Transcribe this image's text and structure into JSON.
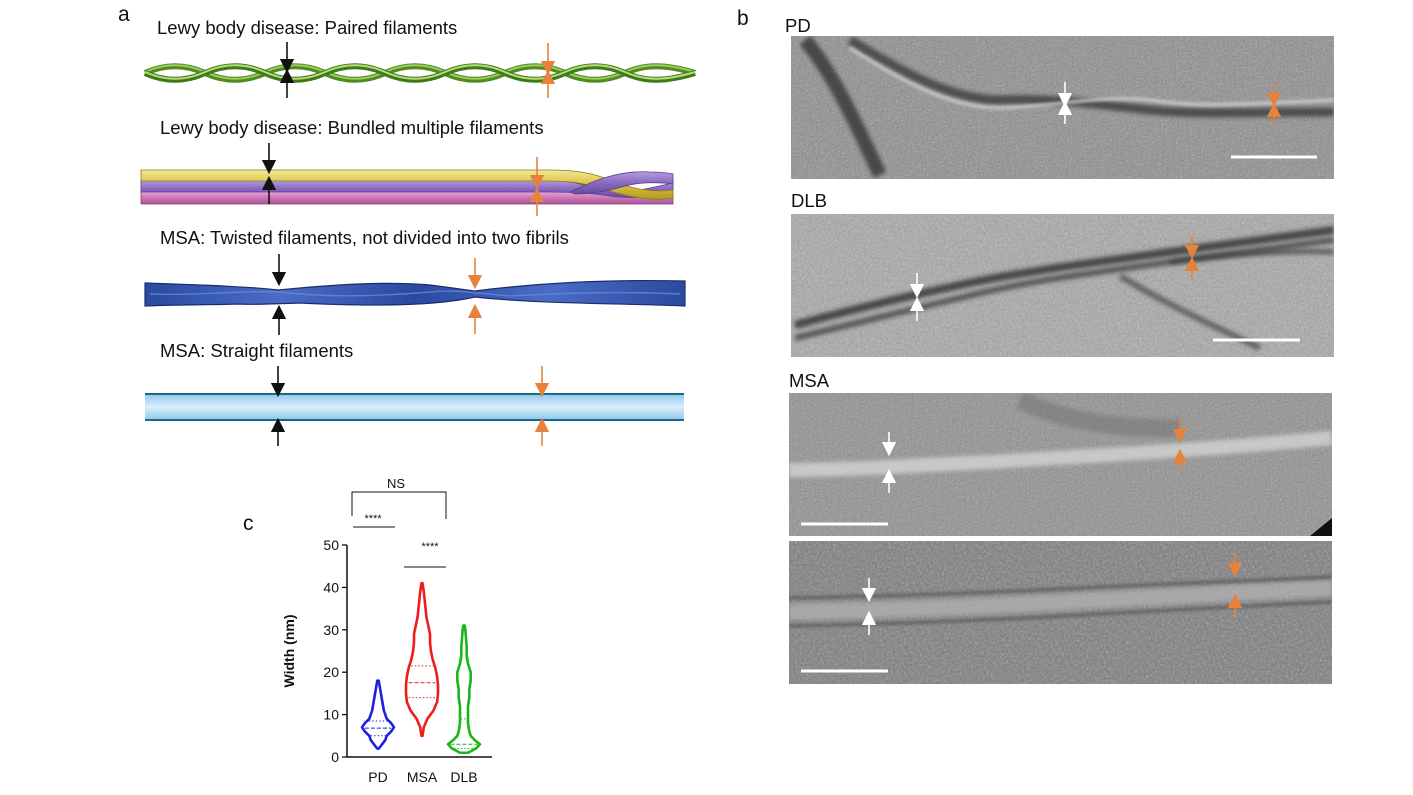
{
  "panels": {
    "a": {
      "label": "a",
      "rows": [
        {
          "title": "Lewy body disease: Paired filaments"
        },
        {
          "title": "Lewy body disease: Bundled multiple filaments"
        },
        {
          "title": "MSA: Twisted filaments, not divided into two fibrils"
        },
        {
          "title": "MSA: Straight filaments"
        }
      ]
    },
    "b": {
      "label": "b",
      "images": [
        {
          "title": "PD"
        },
        {
          "title": "DLB"
        },
        {
          "title": "MSA"
        },
        {
          "title": ""
        }
      ]
    },
    "c": {
      "label": "c"
    }
  },
  "colors": {
    "black_arrow": "#111111",
    "orange_arrow": "#e8823a",
    "white_arrow": "#ffffff",
    "pd_violin": "#1f1fe0",
    "msa_violin": "#ee1c1c",
    "dlb_violin": "#16b716",
    "paired_filament": "#5f9e2a",
    "bundle_yellow": "#e3cf4c",
    "bundle_purple": "#9073c2",
    "bundle_pink": "#d784c0",
    "twisted_blue": "#2f4fa8",
    "straight_blue": "#a9d6f2"
  },
  "chart_data": {
    "type": "violin",
    "title": "",
    "xlabel": "",
    "ylabel": "Width (nm)",
    "ylim": [
      0,
      50
    ],
    "yticks": [
      0,
      10,
      20,
      30,
      40,
      50
    ],
    "categories": [
      "PD",
      "MSA",
      "DLB"
    ],
    "series": [
      {
        "name": "PD",
        "min": 2,
        "max": 18,
        "q1": 5,
        "median": 6.8,
        "q3": 8.5,
        "shape": [
          [
            2,
            0.6
          ],
          [
            4,
            5
          ],
          [
            5,
            6
          ],
          [
            6,
            9
          ],
          [
            7,
            11
          ],
          [
            8,
            9
          ],
          [
            9,
            6
          ],
          [
            10,
            5
          ],
          [
            11,
            4
          ],
          [
            12,
            3.5
          ],
          [
            13,
            3
          ],
          [
            14,
            2.5
          ],
          [
            15,
            2
          ],
          [
            16,
            1.5
          ],
          [
            17,
            1
          ],
          [
            18,
            0.5
          ]
        ]
      },
      {
        "name": "MSA",
        "min": 5,
        "max": 41,
        "q1": 14,
        "median": 17.5,
        "q3": 21.5,
        "shape": [
          [
            5,
            0.6
          ],
          [
            7,
            2
          ],
          [
            9,
            6
          ],
          [
            11,
            13
          ],
          [
            13,
            17
          ],
          [
            15,
            18
          ],
          [
            17,
            18
          ],
          [
            19,
            17
          ],
          [
            21,
            15
          ],
          [
            23,
            12
          ],
          [
            25,
            10
          ],
          [
            27,
            9
          ],
          [
            29,
            9
          ],
          [
            31,
            7
          ],
          [
            33,
            5
          ],
          [
            35,
            4
          ],
          [
            37,
            3
          ],
          [
            39,
            2
          ],
          [
            41,
            0.6
          ]
        ]
      },
      {
        "name": "DLB",
        "min": 1,
        "max": 31,
        "q1": 2,
        "median": 3,
        "q3": 9,
        "shape": [
          [
            1,
            3
          ],
          [
            2,
            9
          ],
          [
            3,
            12
          ],
          [
            4,
            8
          ],
          [
            5,
            5
          ],
          [
            6,
            4
          ],
          [
            7,
            3.5
          ],
          [
            8,
            3
          ],
          [
            10,
            3
          ],
          [
            12,
            3
          ],
          [
            14,
            4
          ],
          [
            16,
            4
          ],
          [
            18,
            5
          ],
          [
            20,
            5
          ],
          [
            21,
            4
          ],
          [
            22,
            3
          ],
          [
            24,
            2
          ],
          [
            26,
            2
          ],
          [
            28,
            1.5
          ],
          [
            30,
            1
          ],
          [
            31,
            0.5
          ]
        ]
      }
    ],
    "significance": [
      {
        "between": [
          "PD",
          "MSA"
        ],
        "label": "****"
      },
      {
        "between": [
          "MSA",
          "DLB"
        ],
        "label": "****"
      },
      {
        "between": [
          "PD",
          "DLB"
        ],
        "label": "NS"
      }
    ]
  }
}
